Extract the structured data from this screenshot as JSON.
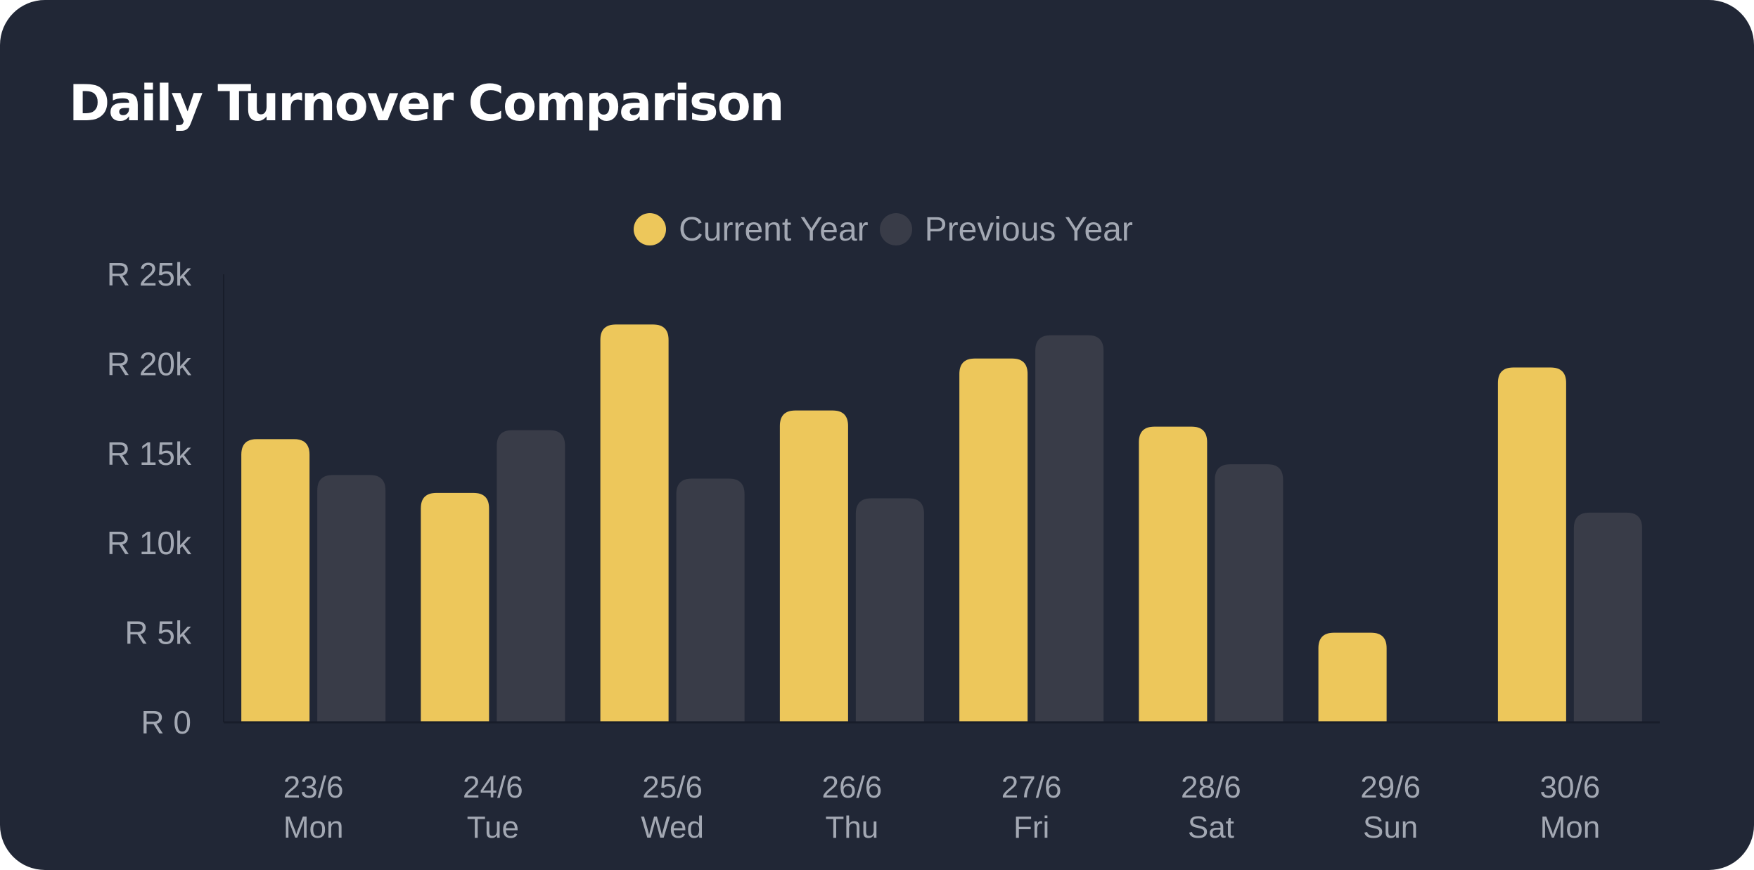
{
  "title": "Daily Turnover Comparison",
  "colors": {
    "background": "#212736",
    "current": "#edc75b",
    "previous": "#393c48",
    "text": "#a3a8b3",
    "title": "#ffffff",
    "axis": "#181d2a"
  },
  "chart_data": {
    "type": "bar",
    "title": "Daily Turnover Comparison",
    "categories": [
      "23/6 Mon",
      "24/6 Tue",
      "25/6 Wed",
      "26/6 Thu",
      "27/6 Fri",
      "28/6 Sat",
      "29/6 Sun",
      "30/6 Mon"
    ],
    "category_dates": [
      "23/6",
      "24/6",
      "25/6",
      "26/6",
      "27/6",
      "28/6",
      "29/6",
      "30/6"
    ],
    "category_days": [
      "Mon",
      "Tue",
      "Wed",
      "Thu",
      "Fri",
      "Sat",
      "Sun",
      "Mon"
    ],
    "series": [
      {
        "name": "Current Year",
        "color": "#edc75b",
        "values": [
          15800,
          12800,
          22200,
          17400,
          20300,
          16500,
          5000,
          19800
        ]
      },
      {
        "name": "Previous Year",
        "color": "#393c48",
        "values": [
          13800,
          16300,
          13600,
          12500,
          21600,
          14400,
          0,
          11700
        ]
      }
    ],
    "ylim": [
      0,
      25000
    ],
    "yticks": [
      0,
      5000,
      10000,
      15000,
      20000,
      25000
    ],
    "ytick_labels": [
      "R 0",
      "R 5k",
      "R 10k",
      "R 15k",
      "R 20k",
      "R 25k"
    ],
    "legend": "top-center",
    "grid": false
  }
}
